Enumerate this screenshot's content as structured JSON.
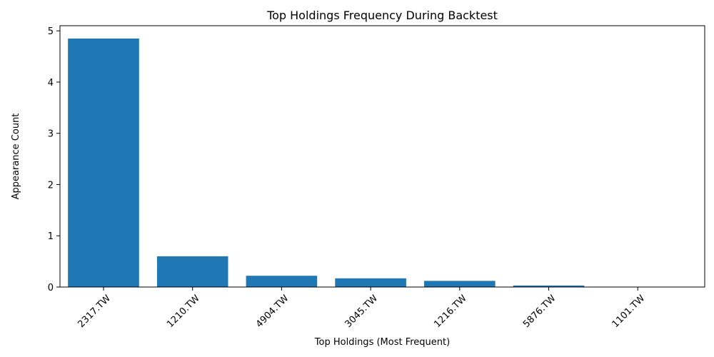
{
  "chart_data": {
    "type": "bar",
    "title": "Top Holdings Frequency During Backtest",
    "xlabel": "Top Holdings (Most Frequent)",
    "ylabel": "Appearance Count",
    "categories": [
      "2317.TW",
      "1210.TW",
      "4904.TW",
      "3045.TW",
      "1216.TW",
      "5876.TW",
      "1101.TW"
    ],
    "values": [
      4.85,
      0.6,
      0.22,
      0.17,
      0.12,
      0.03,
      0.0
    ],
    "ylim": [
      0,
      5.1
    ],
    "yticks": [
      0,
      1,
      2,
      3,
      4,
      5
    ],
    "xtick_rotation": 45,
    "bar_color": "#1f77b4",
    "grid": false,
    "legend": false
  }
}
